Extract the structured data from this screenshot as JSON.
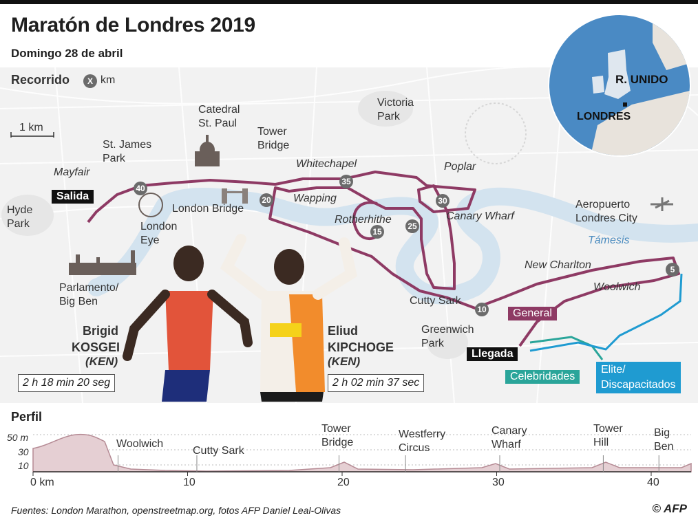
{
  "header": {
    "title": "Maratón de Londres 2019",
    "subtitle": "Domingo 28 de abril"
  },
  "legend": {
    "route_label": "Recorrido",
    "km_marker_symbol": "X",
    "km_unit": "km",
    "scale_label": "1 km"
  },
  "colors": {
    "route": "#8e3a64",
    "celebrities": "#2aa59a",
    "elite": "#1f9bd1",
    "river": "#d3e3ef",
    "map_bg": "#f2f2f2",
    "profile_fill": "#e5cfd3",
    "marker": "#6b6b6b"
  },
  "map_labels": {
    "catedral": "Catedral\nSt. Paul",
    "tower_bridge": "Tower\nBridge",
    "victoria_park": "Victoria\nPark",
    "st_james": "St. James\nPark",
    "mayfair": "Mayfair",
    "whitechapel": "Whitechapel",
    "poplar": "Poplar",
    "hyde_park": "Hyde\nPark",
    "london_bridge": "London Bridge",
    "wapping": "Wapping",
    "rotherhithe": "Rotherhithe",
    "canary_wharf": "Canary Wharf",
    "aeropuerto": "Aeropuerto\nLondres City",
    "london_eye": "London\nEye",
    "tamesis": "Támesis",
    "new_charlton": "New Charlton",
    "woolwich": "Woolwich",
    "parlamento": "Parlamento/\nBig Ben",
    "cutty_sark": "Cutty Sark",
    "greenwich_park": "Greenwich\nPark"
  },
  "start_finish": {
    "start": "Salida",
    "finish": "Llegada"
  },
  "route_tags": {
    "general": "General",
    "celebrities": "Celebridades",
    "elite": "Elite/\nDiscapacitados"
  },
  "km_markers": [
    "5",
    "10",
    "15",
    "20",
    "25",
    "30",
    "35",
    "40"
  ],
  "inset": {
    "country": "R. UNIDO",
    "city": "LONDRES"
  },
  "athletes": [
    {
      "first": "Brigid",
      "last": "KOSGEI",
      "country": "(KEN)",
      "time": "2 h 18 min 20 seg"
    },
    {
      "first": "Eliud",
      "last": "KIPCHOGE",
      "country": "(KEN)",
      "time": "2 h 02 min 37 sec"
    }
  ],
  "profile": {
    "title": "Perfil",
    "y_ticks": [
      "50 m",
      "30",
      "10"
    ],
    "x_ticks": [
      "0 km",
      "10",
      "20",
      "30",
      "40"
    ],
    "landmarks": [
      {
        "label": "Woolwich",
        "km": 5.5
      },
      {
        "label": "Cutty Sark",
        "km": 10.6
      },
      {
        "label": "Tower\nBridge",
        "km": 19.8
      },
      {
        "label": "Westferry\nCircus",
        "km": 24.1
      },
      {
        "label": "Canary\nWharf",
        "km": 30.2
      },
      {
        "label": "Tower\nHill",
        "km": 36.9
      },
      {
        "label": "Big\nBen",
        "km": 40.5
      }
    ]
  },
  "footer": {
    "sources": "Fuentes: London Marathon, openstreetmap.org, fotos AFP Daniel Leal-Olivas",
    "credit": "© AFP"
  }
}
